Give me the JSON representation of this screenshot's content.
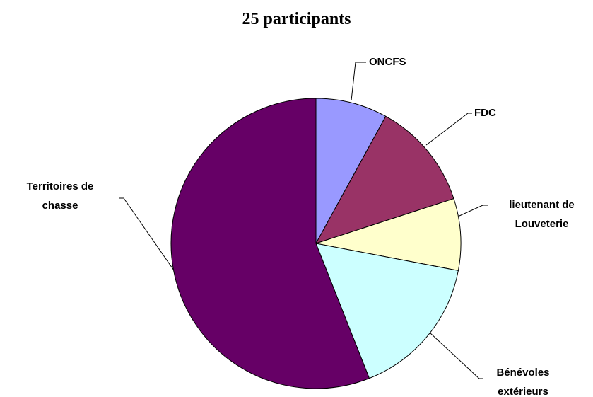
{
  "chart_data": {
    "type": "pie",
    "title": "25 participants",
    "categories": [
      "ONCFS",
      "FDC",
      "lieutenant de\nLouveterie",
      "Bénévoles\nextérieurs",
      "Territoires de\nchasse"
    ],
    "values": [
      2,
      3,
      2,
      4,
      14
    ],
    "colors": [
      "#9999ff",
      "#993366",
      "#ffffcc",
      "#ccffff",
      "#660066"
    ]
  }
}
